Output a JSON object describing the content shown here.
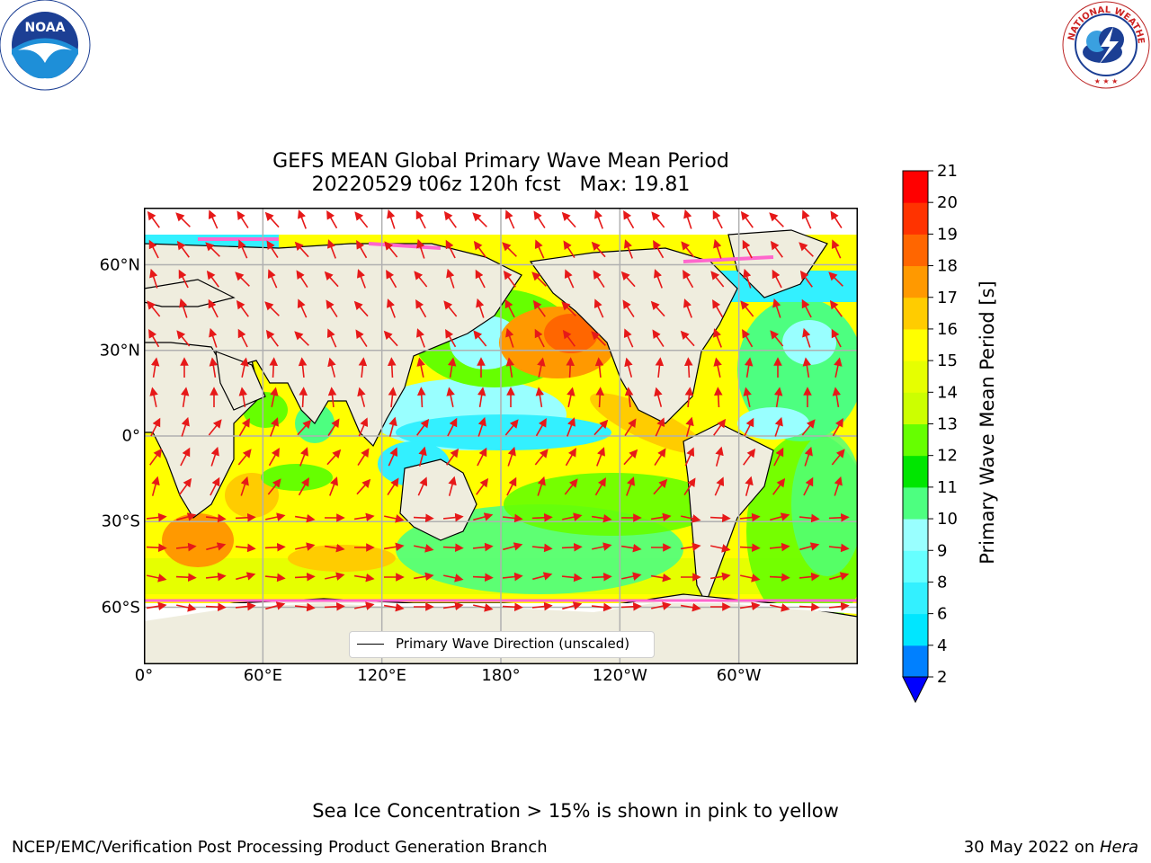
{
  "title": {
    "line1": "GEFS MEAN Global Primary Wave Mean Period",
    "line2": "20220529 t06z 120h fcst   Max: 19.81"
  },
  "logos": {
    "left": {
      "name": "noaa-logo",
      "text": "NOAA"
    },
    "right": {
      "name": "nws-logo",
      "text": "NATIONAL WEATHER SERVICE"
    }
  },
  "map": {
    "type": "filled-contour-map",
    "projection": "cylindrical",
    "lon_range": [
      0,
      360
    ],
    "lat_range": [
      -80,
      80
    ],
    "x_ticks": [
      "0°",
      "60°E",
      "120°E",
      "180°",
      "120°W",
      "60°W"
    ],
    "y_ticks": [
      "60°N",
      "30°N",
      "0°",
      "30°S",
      "60°S"
    ],
    "grid": true,
    "land_color": "#efedde",
    "arrow_color": "#e61919",
    "legend": {
      "label": "Primary Wave Direction (unscaled)",
      "placement": "lower-center"
    }
  },
  "colorbar": {
    "label": "Primary Wave Mean Period [s]",
    "ticks": [
      "2",
      "4",
      "6",
      "8",
      "9",
      "10",
      "11",
      "12",
      "13",
      "14",
      "15",
      "16",
      "17",
      "18",
      "19",
      "20",
      "21"
    ],
    "colors": [
      "#0080ff",
      "#00e6ff",
      "#33f0ff",
      "#66ffff",
      "#99ffff",
      "#4dff80",
      "#00e600",
      "#66ff00",
      "#ccff00",
      "#e6ff00",
      "#ffff00",
      "#ffcc00",
      "#ff9900",
      "#ff6600",
      "#ff3300",
      "#ff0000"
    ],
    "extend_color": "#0000ff"
  },
  "chart_data": {
    "type": "heatmap",
    "variable": "Primary Wave Mean Period",
    "units": "s",
    "max": 19.81,
    "vmin": 2,
    "vmax": 21
  },
  "footnote": "Sea Ice Concentration > 15% is shown in pink to yellow",
  "credit": "NCEP/EMC/Verification Post Processing Product Generation Branch",
  "date": {
    "text": "30 May 2022 on ",
    "host": "Hera"
  }
}
